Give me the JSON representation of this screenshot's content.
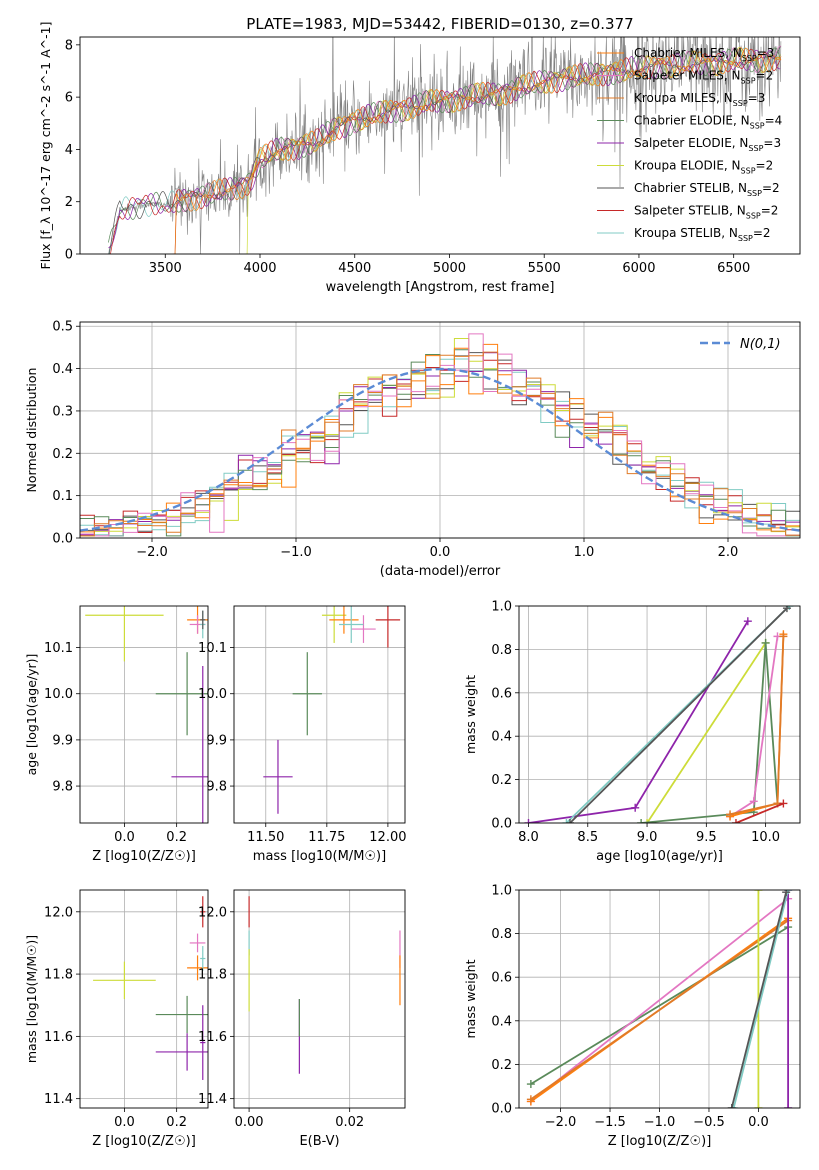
{
  "figure_title": "PLATE=1983, MJD=53442, FIBERID=0130, z=0.377",
  "series_colors": {
    "chabrier_miles": "#ff7f0e",
    "salpeter_miles": "#e377c2",
    "kroupa_miles": "#e07b28",
    "chabrier_elodie": "#5a8a5a",
    "salpeter_elodie": "#8e24aa",
    "kroupa_elodie": "#cddc39",
    "chabrier_stelib": "#555555",
    "salpeter_stelib": "#c62828",
    "kroupa_stelib": "#80cbc4",
    "normal": "#5b8bd5",
    "data": "#808080"
  },
  "chart_data": [
    {
      "id": "spectrum",
      "type": "line",
      "title": "PLATE=1983, MJD=53442, FIBERID=0130, z=0.377",
      "xlabel": "wavelength [Angstrom, rest frame]",
      "ylabel": "Flux [f_λ 10^-17 erg cm^-2 s^-1 A^-1]",
      "xlim": [
        3050,
        6850
      ],
      "ylim": [
        0,
        8.3
      ],
      "xticks": [
        3500,
        4000,
        4500,
        5000,
        5500,
        6000,
        6500
      ],
      "yticks": [
        0,
        2,
        4,
        6,
        8
      ],
      "legend_position": "right",
      "legend": [
        "Chabrier MILES, N_SSP=3",
        "Salpeter MILES, N_SSP=2",
        "Kroupa MILES, N_SSP=3",
        "Chabrier ELODIE, N_SSP=4",
        "Salpeter ELODIE, N_SSP=3",
        "Kroupa ELODIE, N_SSP=2",
        "Chabrier STELIB, N_SSP=2",
        "Salpeter STELIB, N_SSP=2",
        "Kroupa STELIB, N_SSP=2"
      ],
      "model_continuum": {
        "x": [
          3200,
          3260,
          3400,
          3520,
          3600,
          3700,
          3800,
          3900,
          3950,
          4000,
          4100,
          4200,
          4300,
          4400,
          4500,
          4600,
          4700,
          4800,
          4900,
          5000,
          5100,
          5200,
          5300,
          5400,
          5500,
          5600,
          5700,
          5800,
          5900,
          6000,
          6100,
          6200,
          6300,
          6400,
          6500,
          6600,
          6750
        ],
        "y": [
          0.0,
          1.7,
          1.9,
          1.9,
          2.1,
          2.2,
          2.4,
          2.6,
          2.8,
          3.6,
          4.0,
          4.1,
          4.3,
          4.8,
          5.1,
          5.3,
          5.5,
          5.6,
          5.8,
          5.9,
          6.0,
          6.1,
          6.2,
          6.4,
          6.6,
          6.7,
          6.8,
          6.9,
          7.0,
          7.1,
          7.2,
          7.2,
          7.3,
          7.3,
          7.4,
          7.4,
          7.5
        ]
      }
    },
    {
      "id": "residuals",
      "type": "line",
      "xlabel": "(data-model)/error",
      "ylabel": "Normed distribution",
      "xlim": [
        -2.5,
        2.5
      ],
      "ylim": [
        0,
        0.51
      ],
      "xticks": [
        -2,
        -1,
        0,
        1,
        2
      ],
      "yticks": [
        0.0,
        0.1,
        0.2,
        0.3,
        0.4,
        0.5
      ],
      "grid": true,
      "legend_position": "top-right",
      "legend": [
        "N(0,1)"
      ],
      "histogram_bins": 50
    },
    {
      "id": "age_vs_Z",
      "type": "scatter",
      "xlabel": "Z [log10(Z/Z☉)]",
      "ylabel": "age [log10(age/yr)]",
      "xlim": [
        -0.17,
        0.32
      ],
      "ylim": [
        9.72,
        10.19
      ],
      "xticks": [
        0.0,
        0.2
      ],
      "yticks": [
        9.8,
        9.9,
        10.0,
        10.1
      ],
      "grid": true,
      "errorbars": [
        {
          "series": "kroupa_elodie",
          "x": 0.0,
          "y": 10.17,
          "xerr": 0.15,
          "yerr": 0.1
        },
        {
          "series": "chabrier_elodie",
          "x": 0.24,
          "y": 10.0,
          "xerr": 0.12,
          "yerr": 0.09
        },
        {
          "series": "salpeter_elodie",
          "x": 0.3,
          "y": 9.82,
          "xerr": 0.12,
          "yerr": 0.24
        },
        {
          "series": "chabrier_miles",
          "x": 0.28,
          "y": 10.16,
          "xerr": 0.04,
          "yerr": 0.03
        },
        {
          "series": "salpeter_miles",
          "x": 0.28,
          "y": 10.15,
          "xerr": 0.03,
          "yerr": 0.02
        },
        {
          "series": "kroupa_stelib",
          "x": 0.3,
          "y": 10.15,
          "xerr": 0.01,
          "yerr": 0.03
        },
        {
          "series": "chabrier_stelib",
          "x": 0.3,
          "y": 10.16,
          "xerr": 0.01,
          "yerr": 0.02
        }
      ]
    },
    {
      "id": "age_vs_mass",
      "type": "scatter",
      "xlabel": "mass [log10(M/M☉)]",
      "ylabel": "",
      "xlim": [
        11.37,
        12.07
      ],
      "ylim": [
        9.72,
        10.19
      ],
      "xticks": [
        11.5,
        11.75,
        12.0
      ],
      "yticks": [
        9.8,
        9.9,
        10.0,
        10.1
      ],
      "grid": true,
      "errorbars": [
        {
          "series": "kroupa_elodie",
          "x": 11.78,
          "y": 10.17,
          "xerr": 0.05,
          "yerr": 0.06
        },
        {
          "series": "chabrier_elodie",
          "x": 11.67,
          "y": 10.0,
          "xerr": 0.06,
          "yerr": 0.09
        },
        {
          "series": "salpeter_elodie",
          "x": 11.55,
          "y": 9.82,
          "xerr": 0.06,
          "yerr": 0.08
        },
        {
          "series": "chabrier_miles",
          "x": 11.82,
          "y": 10.16,
          "xerr": 0.06,
          "yerr": 0.03
        },
        {
          "series": "salpeter_miles",
          "x": 11.9,
          "y": 10.14,
          "xerr": 0.05,
          "yerr": 0.03
        },
        {
          "series": "salpeter_stelib",
          "x": 12.0,
          "y": 10.16,
          "xerr": 0.05,
          "yerr": 0.06
        },
        {
          "series": "kroupa_stelib",
          "x": 11.85,
          "y": 10.15,
          "xerr": 0.05,
          "yerr": 0.04
        }
      ]
    },
    {
      "id": "massweight_vs_age",
      "type": "line",
      "xlabel": "age [log10(age/yr)]",
      "ylabel": "mass weight",
      "xlim": [
        7.92,
        10.29
      ],
      "ylim": [
        0.0,
        1.0
      ],
      "xticks": [
        8.0,
        8.5,
        9.0,
        9.5,
        10.0
      ],
      "yticks": [
        0.0,
        0.2,
        0.4,
        0.6,
        0.8,
        1.0
      ],
      "grid": true,
      "series": [
        {
          "series": "salpeter_elodie",
          "x": [
            8.0,
            8.9,
            9.85
          ],
          "y": [
            0.0,
            0.07,
            0.93
          ]
        },
        {
          "series": "kroupa_elodie",
          "x": [
            9.0,
            10.0
          ],
          "y": [
            0.0,
            0.83
          ]
        },
        {
          "series": "chabrier_elodie",
          "x": [
            8.95,
            9.9,
            10.0,
            10.1
          ],
          "y": [
            0.0,
            0.05,
            0.83,
            0.09
          ]
        },
        {
          "series": "salpeter_miles",
          "x": [
            9.7,
            9.9,
            10.1
          ],
          "y": [
            0.03,
            0.1,
            0.86
          ]
        },
        {
          "series": "chabrier_miles",
          "x": [
            9.7,
            10.1,
            10.15
          ],
          "y": [
            0.03,
            0.09,
            0.87
          ]
        },
        {
          "series": "kroupa_miles",
          "x": [
            9.7,
            10.1,
            10.15
          ],
          "y": [
            0.04,
            0.09,
            0.86
          ]
        },
        {
          "series": "kroupa_stelib",
          "x": [
            8.32,
            10.2
          ],
          "y": [
            0.0,
            1.0
          ]
        },
        {
          "series": "chabrier_stelib",
          "x": [
            8.35,
            10.18
          ],
          "y": [
            0.0,
            0.99
          ]
        },
        {
          "series": "salpeter_stelib",
          "x": [
            9.75,
            10.15
          ],
          "y": [
            0.0,
            0.09
          ]
        }
      ]
    },
    {
      "id": "mass_vs_Z",
      "type": "scatter",
      "xlabel": "Z [log10(Z/Z☉)]",
      "ylabel": "mass [log10(M/M☉)]",
      "xlim": [
        -0.17,
        0.32
      ],
      "ylim": [
        11.37,
        12.07
      ],
      "xticks": [
        0.0,
        0.2
      ],
      "yticks": [
        11.4,
        11.6,
        11.8,
        12.0
      ],
      "grid": true,
      "errorbars": [
        {
          "series": "kroupa_elodie",
          "x": 0.0,
          "y": 11.78,
          "xerr": 0.12,
          "yerr": 0.06
        },
        {
          "series": "chabrier_elodie",
          "x": 0.24,
          "y": 11.67,
          "xerr": 0.12,
          "yerr": 0.06
        },
        {
          "series": "salpeter_elodie",
          "x": 0.24,
          "y": 11.55,
          "xerr": 0.12,
          "yerr": 0.06
        },
        {
          "series": "chabrier_miles",
          "x": 0.28,
          "y": 11.82,
          "xerr": 0.04,
          "yerr": 0.04
        },
        {
          "series": "salpeter_miles",
          "x": 0.28,
          "y": 11.9,
          "xerr": 0.03,
          "yerr": 0.03
        },
        {
          "series": "salpeter_stelib",
          "x": 0.3,
          "y": 12.0,
          "xerr": 0.01,
          "yerr": 0.05
        },
        {
          "series": "kroupa_stelib",
          "x": 0.3,
          "y": 11.85,
          "xerr": 0.01,
          "yerr": 0.04
        },
        {
          "series": "salpeter_elodie",
          "x": 0.3,
          "y": 11.58,
          "xerr": 0.01,
          "yerr": 0.12
        }
      ]
    },
    {
      "id": "mass_vs_ebv",
      "type": "scatter",
      "xlabel": "E(B-V)",
      "ylabel": "",
      "xlim": [
        -0.003,
        0.031
      ],
      "ylim": [
        11.37,
        12.07
      ],
      "xticks": [
        0.0,
        0.02
      ],
      "yticks": [
        11.4,
        11.6,
        11.8,
        12.0
      ],
      "grid": true,
      "errorbars": [
        {
          "series": "salpeter_stelib",
          "x": 0.0,
          "y": 12.0,
          "xerr": 0.0,
          "yerr": 0.05
        },
        {
          "series": "kroupa_stelib",
          "x": 0.0,
          "y": 11.9,
          "xerr": 0.0,
          "yerr": 0.04
        },
        {
          "series": "kroupa_elodie",
          "x": 0.0,
          "y": 11.78,
          "xerr": 0.0,
          "yerr": 0.1
        },
        {
          "series": "salpeter_elodie",
          "x": 0.01,
          "y": 11.6,
          "xerr": 0.0,
          "yerr": 0.12
        },
        {
          "series": "chabrier_elodie",
          "x": 0.01,
          "y": 11.66,
          "xerr": 0.0,
          "yerr": 0.06
        },
        {
          "series": "salpeter_miles",
          "x": 0.03,
          "y": 11.88,
          "xerr": 0.0,
          "yerr": 0.06
        },
        {
          "series": "chabrier_miles",
          "x": 0.03,
          "y": 11.78,
          "xerr": 0.0,
          "yerr": 0.08
        }
      ]
    },
    {
      "id": "massweight_vs_Z",
      "type": "line",
      "xlabel": "Z [log10(Z/Z☉)]",
      "ylabel": "mass weight",
      "xlim": [
        -2.42,
        0.42
      ],
      "ylim": [
        0.0,
        1.0
      ],
      "xticks": [
        -2.0,
        -1.5,
        -1.0,
        -0.5,
        0.0
      ],
      "yticks": [
        0.0,
        0.2,
        0.4,
        0.6,
        0.8,
        1.0
      ],
      "grid": true,
      "series": [
        {
          "series": "chabrier_elodie",
          "x": [
            -2.3,
            0.3
          ],
          "y": [
            0.11,
            0.83
          ]
        },
        {
          "series": "salpeter_miles",
          "x": [
            -2.3,
            0.3
          ],
          "y": [
            0.03,
            0.96
          ]
        },
        {
          "series": "chabrier_miles",
          "x": [
            -2.3,
            0.3
          ],
          "y": [
            0.03,
            0.87
          ]
        },
        {
          "series": "kroupa_miles",
          "x": [
            -2.3,
            0.3
          ],
          "y": [
            0.04,
            0.86
          ]
        },
        {
          "series": "kroupa_elodie",
          "x": [
            0.0,
            0.0
          ],
          "y": [
            0.0,
            1.0
          ]
        },
        {
          "series": "salpeter_elodie",
          "x": [
            0.3,
            0.3
          ],
          "y": [
            0.0,
            1.0
          ]
        },
        {
          "series": "kroupa_stelib",
          "x": [
            -0.25,
            0.3
          ],
          "y": [
            0.0,
            1.0
          ]
        },
        {
          "series": "chabrier_stelib",
          "x": [
            -0.27,
            0.28
          ],
          "y": [
            0.0,
            0.99
          ]
        }
      ]
    }
  ]
}
